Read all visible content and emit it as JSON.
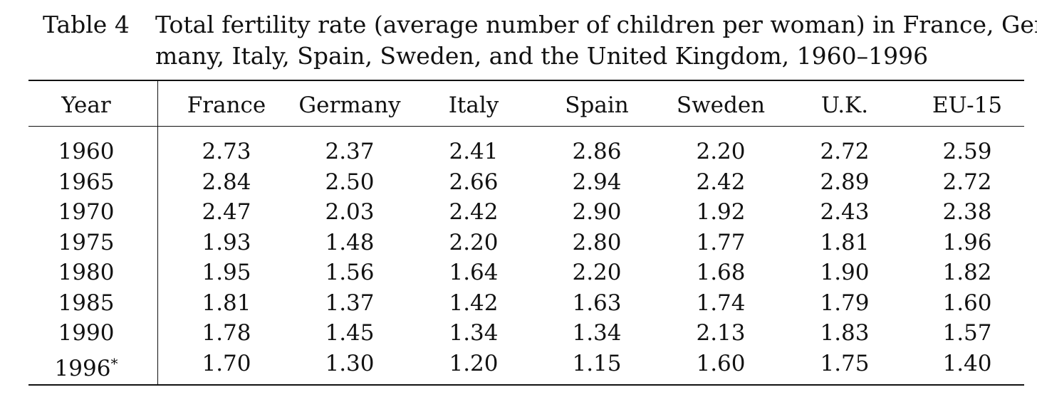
{
  "caption": {
    "label": "Table 4",
    "line1": "Total fertility rate (average number of children per woman) in France, Ger-",
    "line2": "many, Italy, Spain, Sweden, and the United Kingdom, 1960–1996"
  },
  "columns": [
    "Year",
    "France",
    "Germany",
    "Italy",
    "Spain",
    "Sweden",
    "U.K.",
    "EU-15"
  ],
  "rows": [
    {
      "year": "1960",
      "mark": "",
      "values": [
        "2.73",
        "2.37",
        "2.41",
        "2.86",
        "2.20",
        "2.72",
        "2.59"
      ]
    },
    {
      "year": "1965",
      "mark": "",
      "values": [
        "2.84",
        "2.50",
        "2.66",
        "2.94",
        "2.42",
        "2.89",
        "2.72"
      ]
    },
    {
      "year": "1970",
      "mark": "",
      "values": [
        "2.47",
        "2.03",
        "2.42",
        "2.90",
        "1.92",
        "2.43",
        "2.38"
      ]
    },
    {
      "year": "1975",
      "mark": "",
      "values": [
        "1.93",
        "1.48",
        "2.20",
        "2.80",
        "1.77",
        "1.81",
        "1.96"
      ]
    },
    {
      "year": "1980",
      "mark": "",
      "values": [
        "1.95",
        "1.56",
        "1.64",
        "2.20",
        "1.68",
        "1.90",
        "1.82"
      ]
    },
    {
      "year": "1985",
      "mark": "",
      "values": [
        "1.81",
        "1.37",
        "1.42",
        "1.63",
        "1.74",
        "1.79",
        "1.60"
      ]
    },
    {
      "year": "1990",
      "mark": "",
      "values": [
        "1.78",
        "1.45",
        "1.34",
        "1.34",
        "2.13",
        "1.83",
        "1.57"
      ]
    },
    {
      "year": "1996",
      "mark": "*",
      "values": [
        "1.70",
        "1.30",
        "1.20",
        "1.15",
        "1.60",
        "1.75",
        "1.40"
      ]
    }
  ]
}
